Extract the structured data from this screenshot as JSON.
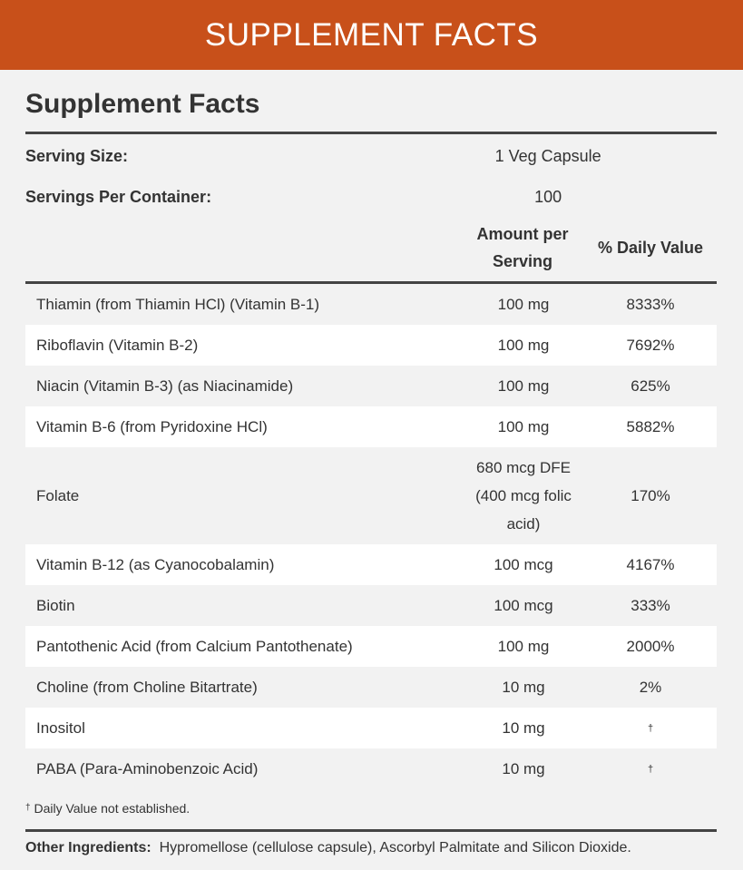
{
  "banner": {
    "title": "SUPPLEMENT FACTS"
  },
  "panel": {
    "title": "Supplement Facts",
    "serving_size_label": "Serving Size:",
    "serving_size_value": "1 Veg Capsule",
    "servings_label": "Servings Per Container:",
    "servings_value": "100",
    "col_amount": "Amount per Serving",
    "col_dv": "% Daily Value",
    "rows": [
      {
        "name": "Thiamin (from Thiamin HCl) (Vitamin B-1)",
        "amount": "100 mg",
        "dv": "8333%"
      },
      {
        "name": "Riboflavin (Vitamin B-2)",
        "amount": "100 mg",
        "dv": "7692%"
      },
      {
        "name": "Niacin (Vitamin B-3) (as Niacinamide)",
        "amount": "100 mg",
        "dv": "625%"
      },
      {
        "name": "Vitamin B-6 (from Pyridoxine HCl)",
        "amount": "100 mg",
        "dv": "5882%"
      },
      {
        "name": "Folate",
        "amount": "680 mcg DFE (400 mcg folic acid)",
        "dv": "170%"
      },
      {
        "name": "Vitamin B-12 (as Cyanocobalamin)",
        "amount": "100 mcg",
        "dv": "4167%"
      },
      {
        "name": "Biotin",
        "amount": "100 mcg",
        "dv": "333%"
      },
      {
        "name": "Pantothenic Acid (from Calcium Pantothenate)",
        "amount": "100 mg",
        "dv": "2000%"
      },
      {
        "name": "Choline (from Choline Bitartrate)",
        "amount": "10 mg",
        "dv": "2%"
      },
      {
        "name": "Inositol",
        "amount": "10 mg",
        "dv": "†"
      },
      {
        "name": "PABA (Para-Aminobenzoic Acid)",
        "amount": "10 mg",
        "dv": "†"
      }
    ],
    "footnote_mark": "†",
    "footnote_text": "Daily Value not established.",
    "other_label": "Other Ingredients:",
    "other_text": "Hypromellose (cellulose capsule), Ascorbyl Palmitate and Silicon Dioxide."
  },
  "colors": {
    "banner": "#c8501a",
    "background": "#f2f2f2",
    "stripe": "#ffffff"
  }
}
